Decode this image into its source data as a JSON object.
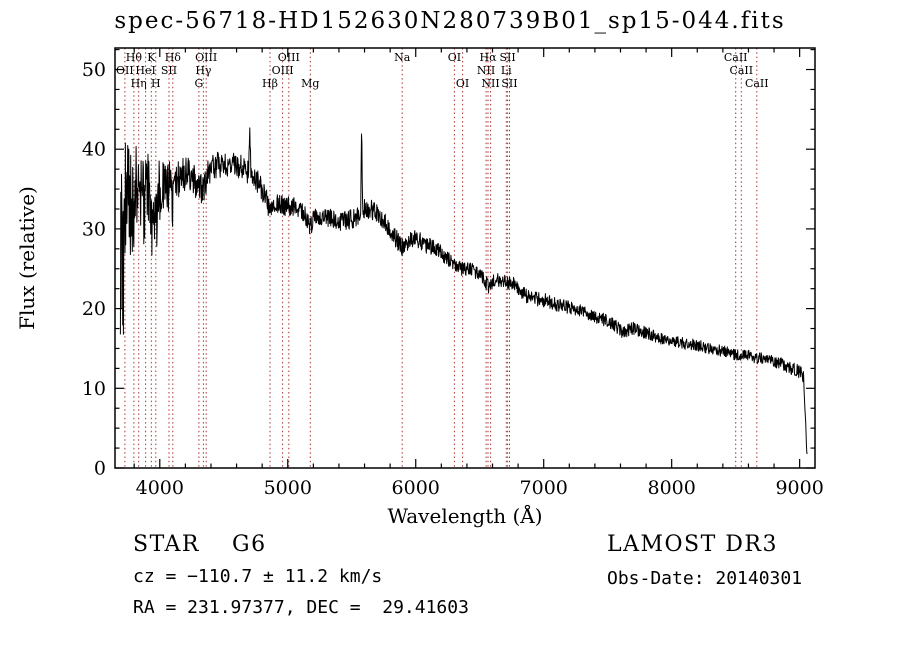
{
  "chart_data": {
    "type": "line",
    "title": "spec-56718-HD152630N280739B01_sp15-044.fits",
    "xlabel": "Wavelength (Å)",
    "ylabel": "Flux (relative)",
    "xlim": [
      3650,
      9120
    ],
    "ylim": [
      0,
      52.7
    ],
    "xticks": [
      4000,
      5000,
      6000,
      7000,
      8000,
      9000
    ],
    "yticks": [
      0,
      10,
      20,
      30,
      40,
      50
    ],
    "x_minor_step": 200,
    "y_minor_step": 2.5,
    "grid": false,
    "colors": {
      "spectrum": "#000000",
      "line_marker": "#aa3434",
      "line_label": "#7d1818",
      "axis": "#000000"
    },
    "spectral_lines": [
      {
        "label": "OII",
        "wavelength": 3727,
        "row": 2
      },
      {
        "label": "Hθ",
        "wavelength": 3798,
        "row": 1
      },
      {
        "label": "Hη",
        "wavelength": 3835,
        "row": 3
      },
      {
        "label": "HeI",
        "wavelength": 3889,
        "row": 2
      },
      {
        "label": "K",
        "wavelength": 3934,
        "row": 1
      },
      {
        "label": "H",
        "wavelength": 3969,
        "row": 3
      },
      {
        "label": "SII",
        "wavelength": 4072,
        "row": 2
      },
      {
        "label": "Hδ",
        "wavelength": 4102,
        "row": 1
      },
      {
        "label": "G",
        "wavelength": 4306,
        "row": 3
      },
      {
        "label": "Hγ",
        "wavelength": 4341,
        "row": 2
      },
      {
        "label": "OIII",
        "wavelength": 4363,
        "row": 1
      },
      {
        "label": "Hβ",
        "wavelength": 4861,
        "row": 3
      },
      {
        "label": "OIII",
        "wavelength": 4960,
        "row": 2
      },
      {
        "label": "OIII",
        "wavelength": 5008,
        "row": 1
      },
      {
        "label": "Mg",
        "wavelength": 5176,
        "row": 3
      },
      {
        "label": "Na",
        "wavelength": 5894,
        "row": 1
      },
      {
        "label": "OI",
        "wavelength": 6302,
        "row": 1
      },
      {
        "label": "OI",
        "wavelength": 6366,
        "row": 3
      },
      {
        "label": "NII",
        "wavelength": 6550,
        "row": 2
      },
      {
        "label": "Hα",
        "wavelength": 6565,
        "row": 1
      },
      {
        "label": "NII",
        "wavelength": 6585,
        "row": 3
      },
      {
        "label": "Li",
        "wavelength": 6708,
        "row": 2
      },
      {
        "label": "SII",
        "wavelength": 6718,
        "row": 1
      },
      {
        "label": "SII",
        "wavelength": 6733,
        "row": 3
      },
      {
        "label": "CaII",
        "wavelength": 8500,
        "row": 1
      },
      {
        "label": "CaII",
        "wavelength": 8544,
        "row": 2
      },
      {
        "label": "CaII",
        "wavelength": 8665,
        "row": 3
      }
    ],
    "continuum_points": [
      [
        3692,
        24
      ],
      [
        3700,
        30
      ],
      [
        3712,
        22
      ],
      [
        3724,
        31
      ],
      [
        3740,
        33
      ],
      [
        3760,
        34
      ],
      [
        3790,
        33
      ],
      [
        3820,
        35
      ],
      [
        3850,
        34
      ],
      [
        3880,
        33
      ],
      [
        3910,
        35
      ],
      [
        3934,
        30
      ],
      [
        3950,
        33
      ],
      [
        3969,
        30
      ],
      [
        3990,
        35
      ],
      [
        4020,
        36
      ],
      [
        4050,
        34
      ],
      [
        4080,
        36
      ],
      [
        4102,
        33
      ],
      [
        4130,
        36
      ],
      [
        4170,
        37
      ],
      [
        4220,
        37
      ],
      [
        4270,
        36
      ],
      [
        4305,
        35
      ],
      [
        4341,
        35
      ],
      [
        4380,
        37
      ],
      [
        4420,
        38
      ],
      [
        4480,
        38
      ],
      [
        4540,
        38
      ],
      [
        4600,
        38
      ],
      [
        4660,
        37.5
      ],
      [
        4695,
        37
      ],
      [
        4703,
        43
      ],
      [
        4711,
        37
      ],
      [
        4780,
        35.5
      ],
      [
        4830,
        34
      ],
      [
        4861,
        31.5
      ],
      [
        4890,
        33
      ],
      [
        4940,
        33
      ],
      [
        5000,
        33
      ],
      [
        5060,
        32.5
      ],
      [
        5120,
        32
      ],
      [
        5176,
        30.5
      ],
      [
        5230,
        31.5
      ],
      [
        5300,
        31.5
      ],
      [
        5380,
        31
      ],
      [
        5460,
        31
      ],
      [
        5540,
        31.5
      ],
      [
        5570,
        32
      ],
      [
        5577,
        43.5
      ],
      [
        5584,
        32.5
      ],
      [
        5650,
        32.5
      ],
      [
        5720,
        31.5
      ],
      [
        5800,
        30
      ],
      [
        5860,
        28.5
      ],
      [
        5894,
        27.5
      ],
      [
        5940,
        28.5
      ],
      [
        6000,
        29
      ],
      [
        6080,
        28
      ],
      [
        6160,
        27.5
      ],
      [
        6240,
        26.5
      ],
      [
        6302,
        25.5
      ],
      [
        6360,
        25
      ],
      [
        6440,
        25
      ],
      [
        6520,
        24
      ],
      [
        6565,
        22.8
      ],
      [
        6620,
        23.5
      ],
      [
        6700,
        23.5
      ],
      [
        6780,
        23
      ],
      [
        6870,
        21.5
      ],
      [
        6950,
        21.2
      ],
      [
        7020,
        21
      ],
      [
        7100,
        20.5
      ],
      [
        7180,
        20.2
      ],
      [
        7270,
        19.8
      ],
      [
        7360,
        19.2
      ],
      [
        7450,
        18.8
      ],
      [
        7550,
        18
      ],
      [
        7620,
        17
      ],
      [
        7700,
        17.5
      ],
      [
        7800,
        17
      ],
      [
        7900,
        16.3
      ],
      [
        8000,
        16
      ],
      [
        8100,
        15.6
      ],
      [
        8200,
        15.4
      ],
      [
        8300,
        15
      ],
      [
        8400,
        14.7
      ],
      [
        8500,
        14.2
      ],
      [
        8560,
        14.1
      ],
      [
        8620,
        14.2
      ],
      [
        8665,
        13.7
      ],
      [
        8720,
        13.9
      ],
      [
        8800,
        13.4
      ],
      [
        8900,
        12.8
      ],
      [
        8980,
        12.2
      ],
      [
        9030,
        11.6
      ],
      [
        9045,
        6
      ],
      [
        9060,
        0.8
      ]
    ],
    "noise_profile": [
      [
        3692,
        12
      ],
      [
        3720,
        11
      ],
      [
        3760,
        8
      ],
      [
        3800,
        6.5
      ],
      [
        3850,
        5.5
      ],
      [
        3900,
        5
      ],
      [
        3960,
        4.5
      ],
      [
        4030,
        4
      ],
      [
        4100,
        3
      ],
      [
        4200,
        2.2
      ],
      [
        4350,
        1.8
      ],
      [
        4500,
        1.6
      ],
      [
        4700,
        1.5
      ],
      [
        4900,
        1.4
      ],
      [
        5100,
        1.3
      ],
      [
        5400,
        1.2
      ],
      [
        5600,
        1.2
      ],
      [
        5900,
        1.2
      ],
      [
        6200,
        1.0
      ],
      [
        6500,
        0.9
      ],
      [
        6900,
        0.9
      ],
      [
        7300,
        0.8
      ],
      [
        7700,
        0.8
      ],
      [
        8100,
        0.75
      ],
      [
        8500,
        0.7
      ],
      [
        8900,
        0.8
      ],
      [
        9060,
        0.9
      ]
    ],
    "noise_seed": 9,
    "sample_step_angstrom": 3
  },
  "footer": {
    "left": {
      "class": "STAR",
      "subclass": "G6",
      "cz": "cz = −110.7 ± 11.2 km/s",
      "radec": "RA = 231.97377, DEC =  29.41603"
    },
    "right": {
      "survey": "LAMOST DR3",
      "obs_date": "Obs-Date: 20140301"
    }
  }
}
